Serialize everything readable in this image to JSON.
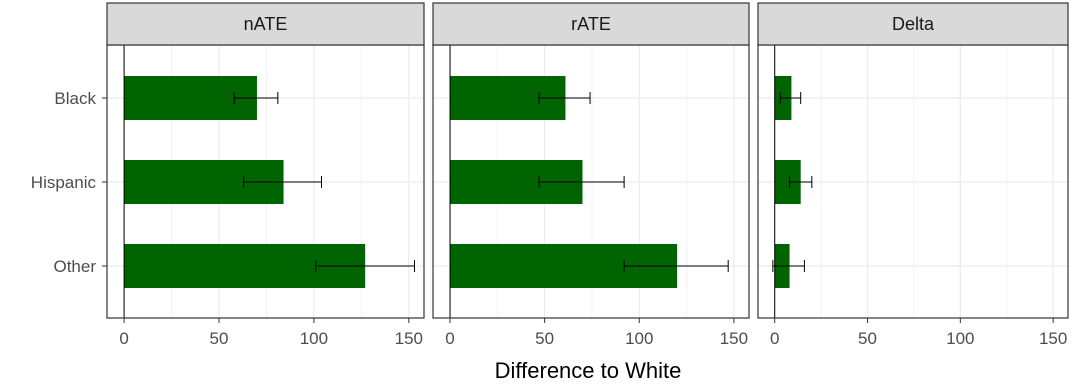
{
  "chart_data": {
    "type": "bar",
    "orientation": "horizontal",
    "categories": [
      "Black",
      "Hispanic",
      "Other"
    ],
    "xlabel": "Difference to White",
    "ylabel": "",
    "xlim": [
      -9,
      158
    ],
    "xticks": [
      0,
      50,
      100,
      150
    ],
    "grid": true,
    "bar_color": "#006400",
    "facets": [
      {
        "name": "nATE",
        "values": [
          70,
          84,
          127
        ],
        "error_low": [
          58,
          63,
          101
        ],
        "error_high": [
          81,
          104,
          153
        ]
      },
      {
        "name": "rATE",
        "values": [
          61,
          70,
          120
        ],
        "error_low": [
          47,
          47,
          92
        ],
        "error_high": [
          74,
          92,
          147
        ]
      },
      {
        "name": "Delta",
        "values": [
          9,
          14,
          8
        ],
        "error_low": [
          3,
          8,
          -1
        ],
        "error_high": [
          14,
          20,
          16
        ]
      }
    ]
  }
}
